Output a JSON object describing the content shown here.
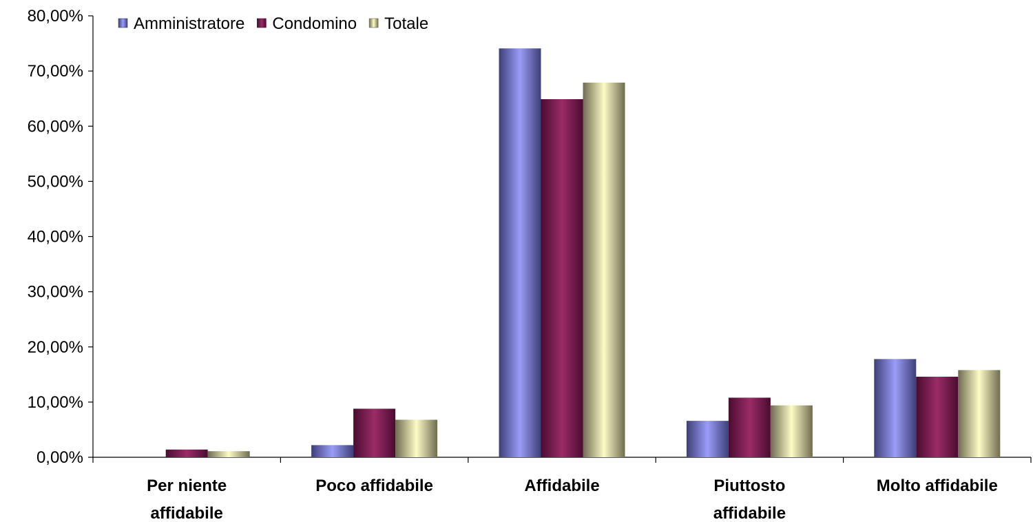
{
  "chart_data": {
    "type": "bar",
    "categories": [
      [
        "Per niente",
        "affidabile"
      ],
      [
        "Poco affidabile"
      ],
      [
        "Affidabile"
      ],
      [
        "Piuttosto",
        "affidabile"
      ],
      [
        "Molto affidabile"
      ]
    ],
    "series": [
      {
        "name": "Amministratore",
        "values": [
          0.0,
          2.2,
          74.1,
          6.6,
          17.8
        ],
        "color_dark": "#3e3f78",
        "color_light": "#9a9cf8"
      },
      {
        "name": "Condomino",
        "values": [
          1.4,
          8.8,
          64.9,
          10.8,
          14.6
        ],
        "color_dark": "#4a0c30",
        "color_light": "#9a2c66"
      },
      {
        "name": "Totale",
        "values": [
          1.1,
          6.8,
          67.9,
          9.4,
          15.8
        ],
        "color_dark": "#6e6c50",
        "color_light": "#fdfbc6"
      }
    ],
    "yticks": [
      "0,00%",
      "10,00%",
      "20,00%",
      "30,00%",
      "40,00%",
      "50,00%",
      "60,00%",
      "70,00%",
      "80,00%"
    ],
    "ylim": [
      0,
      80
    ],
    "legend_position": "top-left",
    "grid": false
  }
}
